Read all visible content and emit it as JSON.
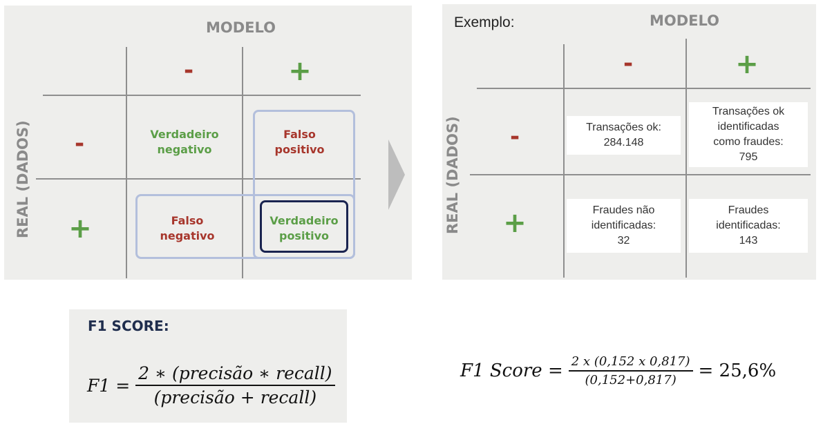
{
  "left_matrix": {
    "col_header": "MODELO",
    "row_header": "REAL (DADOS)",
    "col_minus": "-",
    "col_plus": "+",
    "row_minus": "-",
    "row_plus": "+",
    "tn_line1": "Verdadeiro",
    "tn_line2": "negativo",
    "fp_line1": "Falso",
    "fp_line2": "positivo",
    "fn_line1": "Falso",
    "fn_line2": "negativo",
    "tp_line1": "Verdadeiro",
    "tp_line2": "positivo",
    "colors": {
      "positive": "#5b9e47",
      "negative": "#a7362c",
      "highlight": "#b3bfdc",
      "tp_border": "#1a2450"
    }
  },
  "example_matrix": {
    "label": "Exemplo:",
    "col_header": "MODELO",
    "row_header": "REAL (DADOS)",
    "col_minus": "-",
    "col_plus": "+",
    "row_minus": "-",
    "row_plus": "+",
    "tn": {
      "line1": "Transações ok:",
      "line2": "284.148"
    },
    "fp": {
      "line1": "Transações ok",
      "line2": "identificadas",
      "line3": "como fraudes:",
      "line4": "795"
    },
    "fn": {
      "line1": "Fraudes não",
      "line2": "identificadas:",
      "line3": "32"
    },
    "tp": {
      "line1": "Fraudes",
      "line2": "identificadas:",
      "line3": "143"
    }
  },
  "f1_formula": {
    "title": "F1 SCORE:",
    "lhs": "F1 =",
    "numerator": "2 ∗ (precisão  ∗ recall)",
    "denominator": "(precisão + recall)"
  },
  "f1_example": {
    "lhs": "F1 Score =",
    "numerator": "2 x (0,152 x 0,817)",
    "denominator": "(0,152+0,817)",
    "result": "= 25,6%"
  }
}
